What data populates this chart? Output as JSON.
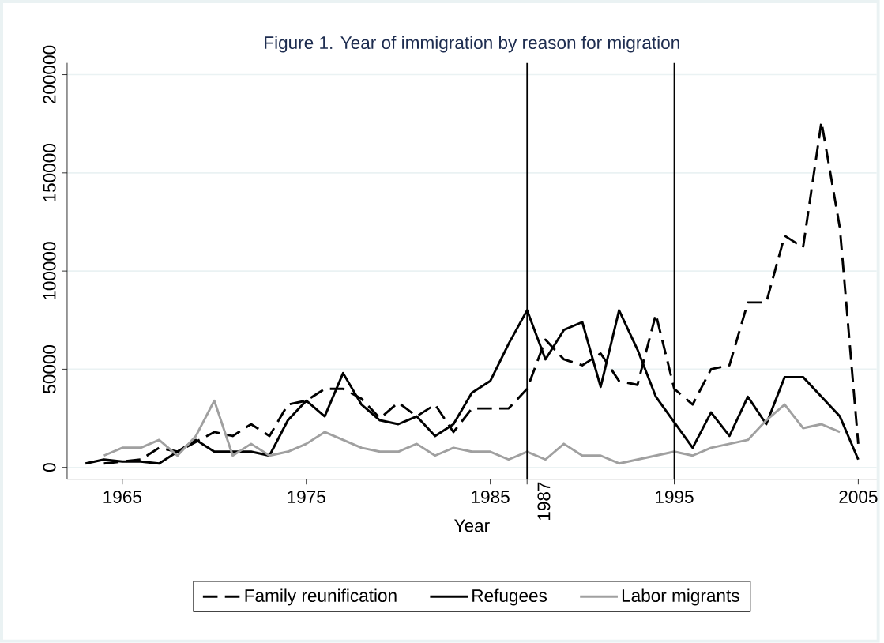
{
  "chart_data": {
    "type": "line",
    "title": "Figure 1. Year of immigration by reason for migration",
    "xlabel": "Year",
    "series": [
      {
        "name": "Family reunification",
        "color": "#000000",
        "line_style": "dashed",
        "x": [
          1964,
          1965,
          1966,
          1967,
          1968,
          1969,
          1970,
          1971,
          1972,
          1973,
          1974,
          1975,
          1976,
          1977,
          1978,
          1979,
          1980,
          1981,
          1982,
          1983,
          1984,
          1985,
          1986,
          1987,
          1988,
          1989,
          1990,
          1991,
          1992,
          1993,
          1994,
          1995,
          1996,
          1997,
          1998,
          1999,
          2000,
          2001,
          2002,
          2003,
          2004,
          2005
        ],
        "values": [
          2000,
          3000,
          4000,
          10000,
          8000,
          13000,
          18000,
          16000,
          22000,
          16000,
          32000,
          34000,
          40000,
          40000,
          35000,
          25000,
          33000,
          26000,
          32000,
          18000,
          30000,
          30000,
          30000,
          40000,
          65000,
          55000,
          52000,
          58000,
          44000,
          42000,
          78000,
          40000,
          32000,
          50000,
          52000,
          84000,
          84000,
          118000,
          112000,
          176000,
          122000,
          12000
        ]
      },
      {
        "name": "Refugees",
        "color": "#000000",
        "line_style": "solid",
        "x": [
          1963,
          1964,
          1965,
          1966,
          1967,
          1968,
          1969,
          1970,
          1971,
          1972,
          1973,
          1974,
          1975,
          1976,
          1977,
          1978,
          1979,
          1980,
          1981,
          1982,
          1983,
          1984,
          1985,
          1986,
          1987,
          1988,
          1989,
          1990,
          1991,
          1992,
          1993,
          1994,
          1995,
          1996,
          1997,
          1998,
          1999,
          2000,
          2001,
          2002,
          2003,
          2004,
          2005
        ],
        "values": [
          2000,
          4000,
          3000,
          3000,
          2000,
          8000,
          14000,
          8000,
          8000,
          8000,
          6000,
          24000,
          34000,
          26000,
          48000,
          32000,
          24000,
          22000,
          26000,
          16000,
          22000,
          38000,
          44000,
          63000,
          80000,
          55000,
          70000,
          74000,
          41000,
          80000,
          60000,
          36000,
          23000,
          10000,
          28000,
          16000,
          36000,
          22000,
          46000,
          46000,
          36000,
          26000,
          4000
        ]
      },
      {
        "name": "Labor migrants",
        "color": "#a0a0a0",
        "line_style": "solid",
        "x": [
          1964,
          1965,
          1966,
          1967,
          1968,
          1969,
          1970,
          1971,
          1972,
          1973,
          1974,
          1975,
          1976,
          1977,
          1978,
          1979,
          1980,
          1981,
          1982,
          1983,
          1984,
          1985,
          1986,
          1987,
          1988,
          1989,
          1990,
          1991,
          1992,
          1993,
          1994,
          1995,
          1996,
          1997,
          1998,
          1999,
          2000,
          2001,
          2002,
          2003,
          2004
        ],
        "values": [
          6000,
          10000,
          10000,
          14000,
          6000,
          16000,
          34000,
          6000,
          12000,
          6000,
          8000,
          12000,
          18000,
          14000,
          10000,
          8000,
          8000,
          12000,
          6000,
          10000,
          8000,
          8000,
          4000,
          8000,
          4000,
          12000,
          6000,
          6000,
          2000,
          4000,
          6000,
          8000,
          6000,
          10000,
          12000,
          14000,
          24000,
          32000,
          20000,
          22000,
          18000
        ]
      }
    ],
    "xlim": [
      1962,
      2006
    ],
    "ylim": [
      -6000,
      206000
    ],
    "xticks": [
      1965,
      1975,
      1985,
      1995,
      2005
    ],
    "yticks": [
      0,
      50000,
      100000,
      150000,
      200000
    ],
    "grid": "y",
    "legend": "bottom",
    "ref_lines": [
      {
        "axis": "x",
        "value": 1987,
        "color": "#000000",
        "label": "1987"
      },
      {
        "axis": "x",
        "value": 1995,
        "color": "#000000"
      }
    ]
  }
}
